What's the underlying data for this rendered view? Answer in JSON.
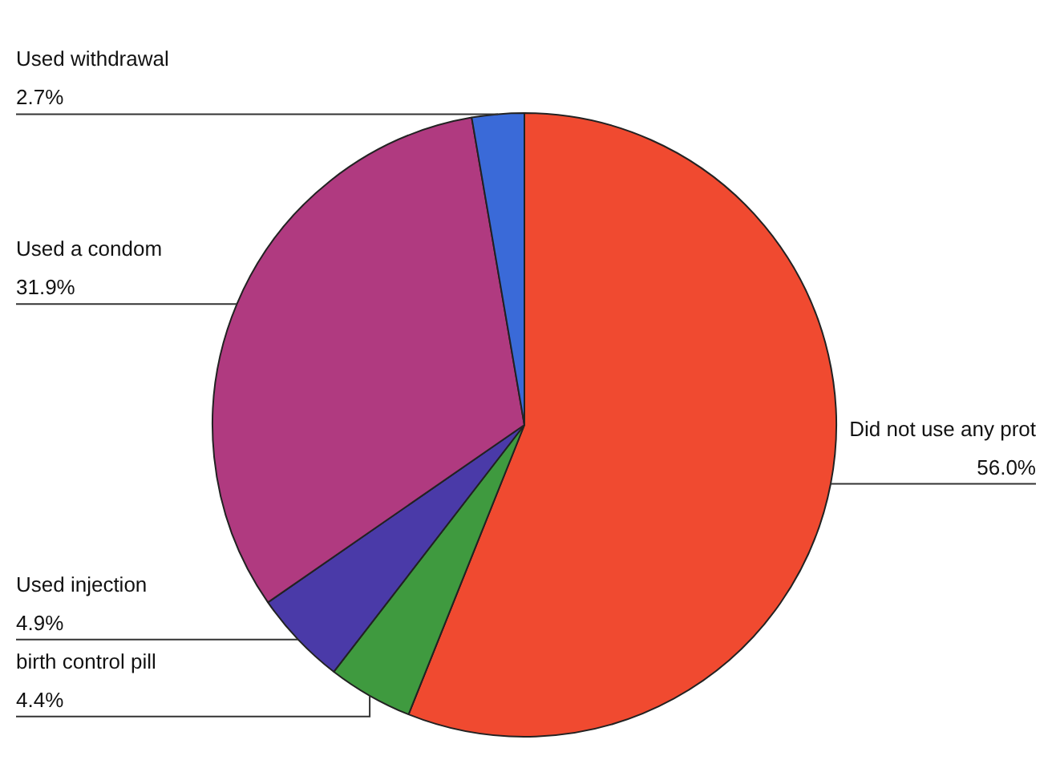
{
  "chart_data": {
    "type": "pie",
    "categories": [
      "Did not use any prot",
      "birth control pill",
      "Used injection",
      "Used a condom",
      "Used withdrawal"
    ],
    "values": [
      56.0,
      4.4,
      4.9,
      31.9,
      2.7
    ],
    "colors": [
      "#f04a30",
      "#3f9a3f",
      "#4a3aa8",
      "#b03a80",
      "#3a6ad8"
    ],
    "value_labels": [
      "56.0%",
      "4.4%",
      "4.9%",
      "31.9%",
      "2.7%"
    ],
    "legend": false
  }
}
